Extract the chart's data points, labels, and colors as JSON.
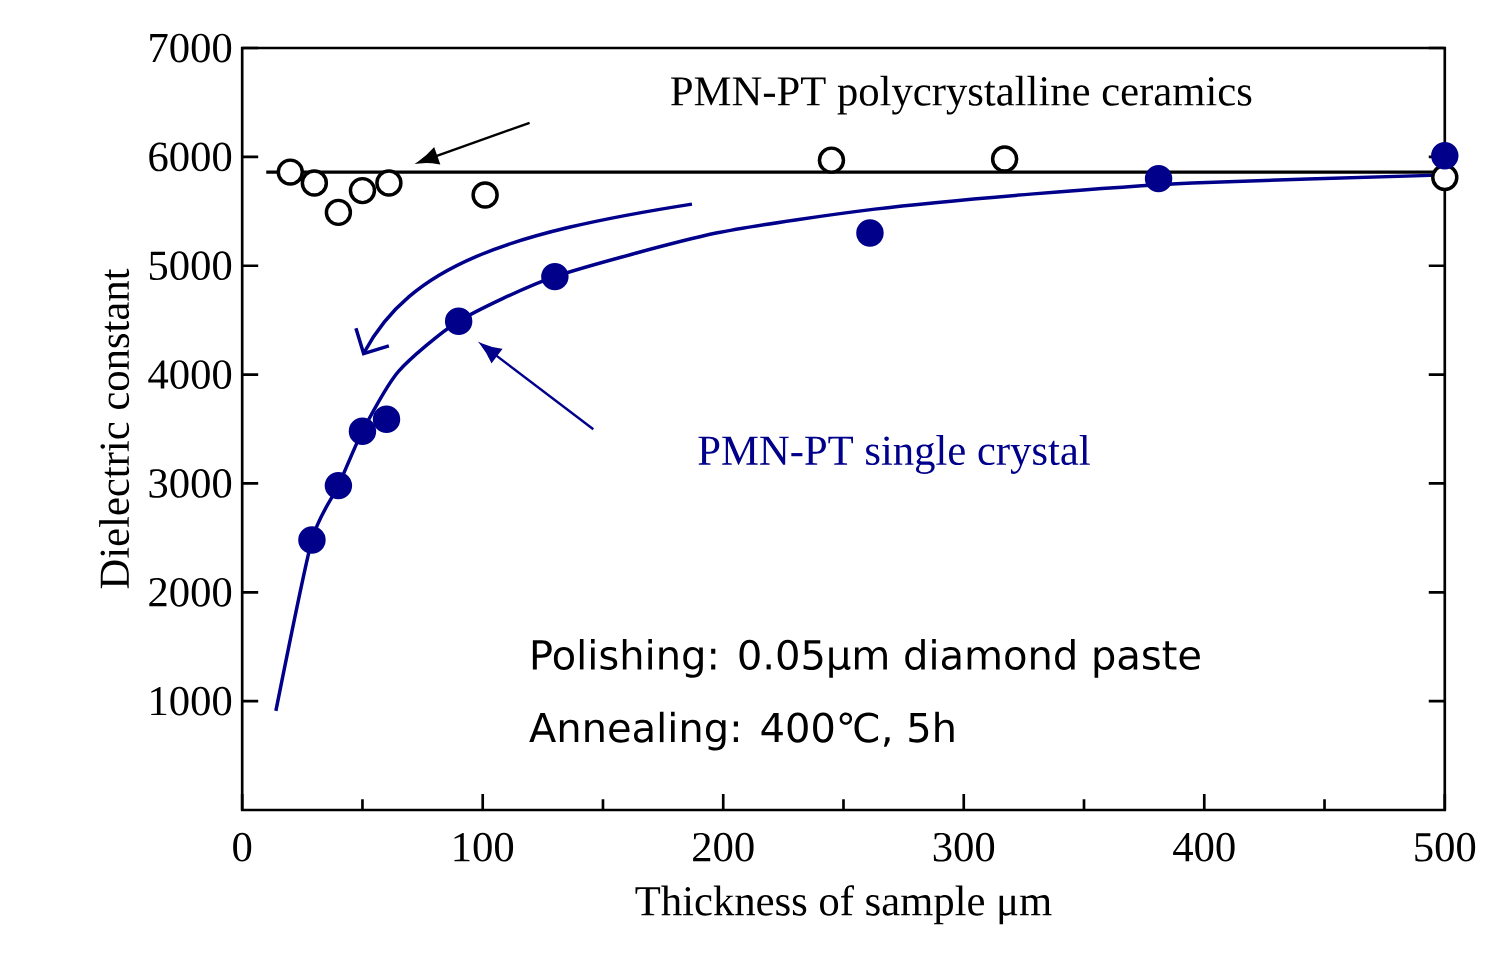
{
  "chart_data": {
    "type": "scatter",
    "xlabel": "Thickness of sample   μm",
    "ylabel": "Dielectric constant",
    "xlim": [
      0,
      500
    ],
    "xticks": [
      0,
      100,
      200,
      300,
      400,
      500
    ],
    "ylim": [
      0,
      7000
    ],
    "yticks": [
      1000,
      2000,
      3000,
      4000,
      5000,
      6000,
      7000
    ],
    "grid": false,
    "series": [
      {
        "name": "PMN-PT polycrystalline ceramics",
        "marker": "circle",
        "color": "#000000",
        "x": [
          20,
          30,
          40,
          50,
          61,
          101,
          245,
          317,
          500
        ],
        "values": [
          5860,
          5760,
          5490,
          5690,
          5760,
          5650,
          5970,
          5980,
          5810
        ]
      },
      {
        "type": "line",
        "marker": "none",
        "color": "#000000",
        "x": [
          10,
          500
        ],
        "values": [
          5860,
          5860
        ]
      },
      {
        "name": "PMN-PT single crystal",
        "marker": "circle",
        "color": "#00008b",
        "x": [
          29,
          40,
          50,
          60,
          90,
          130,
          261,
          381,
          500
        ],
        "values": [
          2480,
          2980,
          3480,
          3590,
          4490,
          4900,
          5300,
          5800,
          6010
        ]
      },
      {
        "type": "line",
        "marker": "none",
        "color": "#00008b",
        "x": [
          14,
          29,
          40,
          50,
          65,
          90,
          130,
          197,
          263,
          329,
          395,
          494,
          500
        ],
        "values": [
          910,
          2480,
          2980,
          3480,
          4030,
          4490,
          4900,
          5300,
          5520,
          5660,
          5760,
          5830,
          5840
        ]
      }
    ],
    "annotations": [
      "Polishing: 0.05μm diamond paste",
      "Annealing: 400℃,  5h"
    ]
  }
}
